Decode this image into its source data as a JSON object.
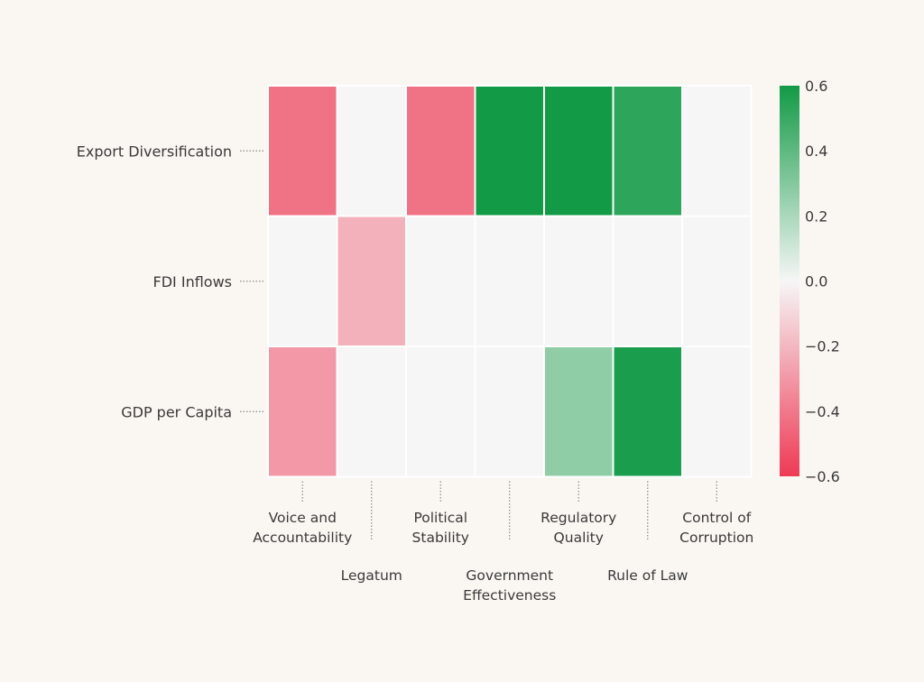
{
  "chart_data": {
    "type": "heatmap",
    "title": "",
    "rows": [
      "Export Diversification",
      "FDI Inflows",
      "GDP per Capita"
    ],
    "columns": [
      {
        "label": "Voice and Accountability",
        "lines": [
          "Voice and",
          "Accountability"
        ]
      },
      {
        "label": "Legatum",
        "lines": [
          "Legatum"
        ]
      },
      {
        "label": "Political Stability",
        "lines": [
          "Political",
          "Stability"
        ]
      },
      {
        "label": "Government Effectiveness",
        "lines": [
          "Government",
          "Effectiveness"
        ]
      },
      {
        "label": "Regulatory Quality",
        "lines": [
          "Regulatory",
          "Quality"
        ]
      },
      {
        "label": "Rule of Law",
        "lines": [
          "Rule of Law"
        ]
      },
      {
        "label": "Control of Corruption",
        "lines": [
          "Control of",
          "Corruption"
        ]
      }
    ],
    "values": [
      [
        -0.42,
        0.0,
        -0.42,
        0.6,
        0.6,
        0.53,
        0.0
      ],
      [
        0.0,
        -0.22,
        0.0,
        0.0,
        0.0,
        0.0,
        0.0
      ],
      [
        -0.3,
        0.0,
        0.0,
        0.0,
        0.27,
        0.58,
        0.0
      ]
    ],
    "colorbar": {
      "min": -0.6,
      "max": 0.6,
      "ticks": [
        0.6,
        0.4,
        0.2,
        0.0,
        -0.2,
        -0.4,
        -0.6
      ],
      "tick_labels": [
        "0.6",
        "0.4",
        "0.2",
        "0.0",
        "−0.2",
        "−0.4",
        "−0.6"
      ]
    },
    "colors": {
      "negative": "#ee3a55",
      "neutral": "#f6f6f6",
      "positive": "#129a46",
      "cell_border": "#ffffff",
      "text": "#3a3a3a",
      "tick": "#8a8a8a"
    }
  }
}
